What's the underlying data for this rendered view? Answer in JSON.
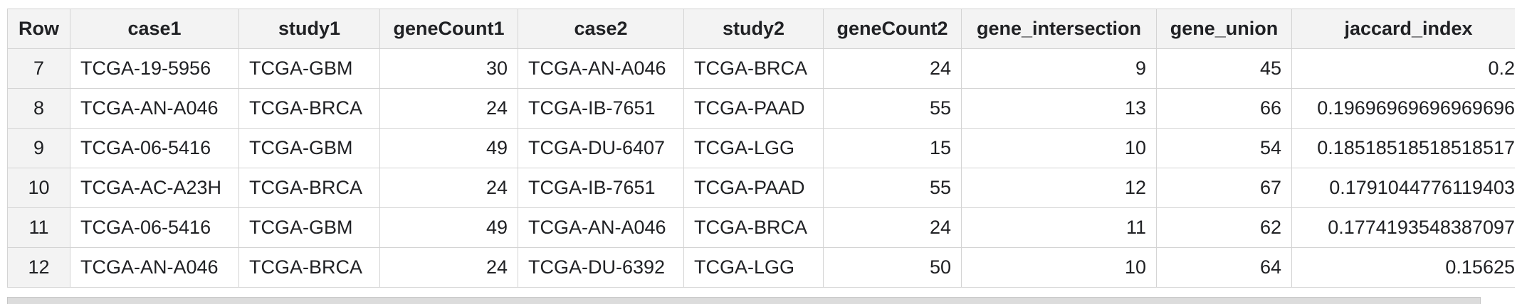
{
  "columns": [
    "Row",
    "case1",
    "study1",
    "geneCount1",
    "case2",
    "study2",
    "geneCount2",
    "gene_intersection",
    "gene_union",
    "jaccard_index"
  ],
  "rows": [
    [
      "7",
      "TCGA-19-5956",
      "TCGA-GBM",
      "30",
      "TCGA-AN-A046",
      "TCGA-BRCA",
      "24",
      "9",
      "45",
      "0.2"
    ],
    [
      "8",
      "TCGA-AN-A046",
      "TCGA-BRCA",
      "24",
      "TCGA-IB-7651",
      "TCGA-PAAD",
      "55",
      "13",
      "66",
      "0.19696969696969696"
    ],
    [
      "9",
      "TCGA-06-5416",
      "TCGA-GBM",
      "49",
      "TCGA-DU-6407",
      "TCGA-LGG",
      "15",
      "10",
      "54",
      "0.18518518518518517"
    ],
    [
      "10",
      "TCGA-AC-A23H",
      "TCGA-BRCA",
      "24",
      "TCGA-IB-7651",
      "TCGA-PAAD",
      "55",
      "12",
      "67",
      "0.1791044776119403"
    ],
    [
      "11",
      "TCGA-06-5416",
      "TCGA-GBM",
      "49",
      "TCGA-AN-A046",
      "TCGA-BRCA",
      "24",
      "11",
      "62",
      "0.1774193548387097"
    ],
    [
      "12",
      "TCGA-AN-A046",
      "TCGA-BRCA",
      "24",
      "TCGA-DU-6392",
      "TCGA-LGG",
      "50",
      "10",
      "64",
      "0.15625"
    ]
  ],
  "colors": {
    "header_bg": "#f3f3f3",
    "border": "#d4d4d4",
    "scrollbar": "#dcdcdc"
  }
}
